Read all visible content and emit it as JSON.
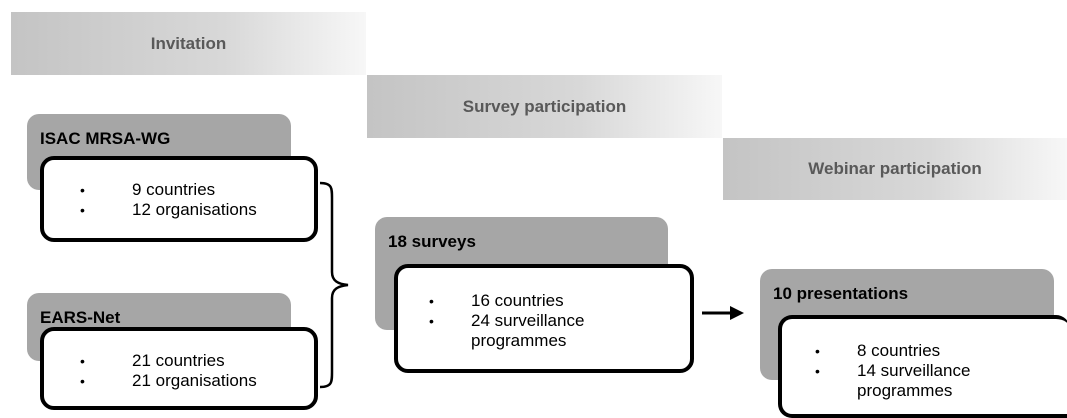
{
  "stages": {
    "invitation": "Invitation",
    "survey": "Survey participation",
    "webinar": "Webinar participation"
  },
  "groups": {
    "isac": {
      "title": "ISAC MRSA-WG",
      "items": [
        "9 countries",
        "12 organisations"
      ]
    },
    "ears": {
      "title": "EARS-Net",
      "items": [
        "21 countries",
        "21 organisations"
      ]
    },
    "surveys": {
      "title": "18 surveys",
      "items": [
        "16 countries",
        "24 surveillance programmes"
      ]
    },
    "presentations": {
      "title": "10 presentations",
      "items": [
        "8 countries",
        "14 surveillance programmes"
      ]
    }
  },
  "bullet_symbol": "•",
  "colors": {
    "band_text": "#595959",
    "card_grey": "#a6a6a6",
    "border": "#000000"
  }
}
